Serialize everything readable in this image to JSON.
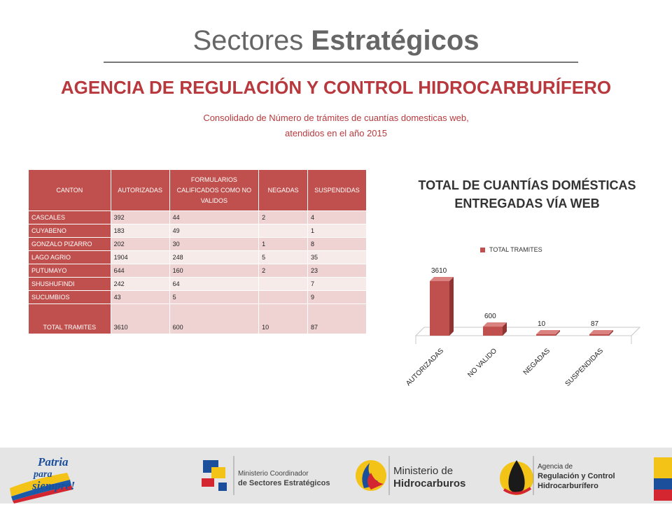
{
  "slide": {
    "title_light": "Sectores ",
    "title_bold": "Estratégicos",
    "agency": "AGENCIA DE REGULACIÓN Y CONTROL HIDROCARBURÍFERO",
    "subtitle_line1": "Consolidado de Número de trámites de cuantías domesticas web,",
    "subtitle_line2": "atendidos en el año 2015"
  },
  "table": {
    "headers": [
      "CANTON",
      "AUTORIZADAS",
      "FORMULARIOS CALIFICADOS COMO NO VALIDOS",
      "NEGADAS",
      "SUSPENDIDAS"
    ],
    "rows": [
      {
        "canton": "CASCALES",
        "autorizadas": "392",
        "no_validos": "44",
        "negadas": "2",
        "suspendidas": "4"
      },
      {
        "canton": "CUYABENO",
        "autorizadas": "183",
        "no_validos": "49",
        "negadas": "",
        "suspendidas": "1"
      },
      {
        "canton": "GONZALO PIZARRO",
        "autorizadas": "202",
        "no_validos": "30",
        "negadas": "1",
        "suspendidas": "8"
      },
      {
        "canton": "LAGO AGRIO",
        "autorizadas": "1904",
        "no_validos": "248",
        "negadas": "5",
        "suspendidas": "35"
      },
      {
        "canton": "PUTUMAYO",
        "autorizadas": "644",
        "no_validos": "160",
        "negadas": "2",
        "suspendidas": "23"
      },
      {
        "canton": "SHUSHUFINDI",
        "autorizadas": "242",
        "no_validos": "64",
        "negadas": "",
        "suspendidas": "7"
      },
      {
        "canton": "SUCUMBIOS",
        "autorizadas": "43",
        "no_validos": "5",
        "negadas": "",
        "suspendidas": "9"
      }
    ],
    "total": {
      "canton": "TOTAL TRAMITES",
      "autorizadas": "3610",
      "no_validos": "600",
      "negadas": "10",
      "suspendidas": "87"
    }
  },
  "chart_data": {
    "type": "bar",
    "title": "TOTAL DE CUANTÍAS DOMÉSTICAS ENTREGADAS VÍA WEB",
    "categories": [
      "AUTORIZADAS",
      "NO VALIDO",
      "NEGADAS",
      "SUSPENDIDAS"
    ],
    "series": [
      {
        "name": "TOTAL TRAMITES",
        "values": [
          3610,
          600,
          10,
          87
        ]
      }
    ],
    "data_labels": [
      "3610",
      "600",
      "10",
      "87"
    ],
    "legend": "top",
    "grid": false,
    "color": "#c0504d"
  },
  "footer": {
    "logo1_line1": "Patria",
    "logo1_line2": "para",
    "logo1_line3": "siempre!",
    "logo2_line1": "Ministerio Coordinador",
    "logo2_line2": "de Sectores Estratégicos",
    "logo3_line1": "Ministerio de",
    "logo3_line2": "Hidrocarburos",
    "logo4_line1": "Agencia de",
    "logo4_line2": "Regulación y Control",
    "logo4_line3": "Hidrocarburífero"
  }
}
